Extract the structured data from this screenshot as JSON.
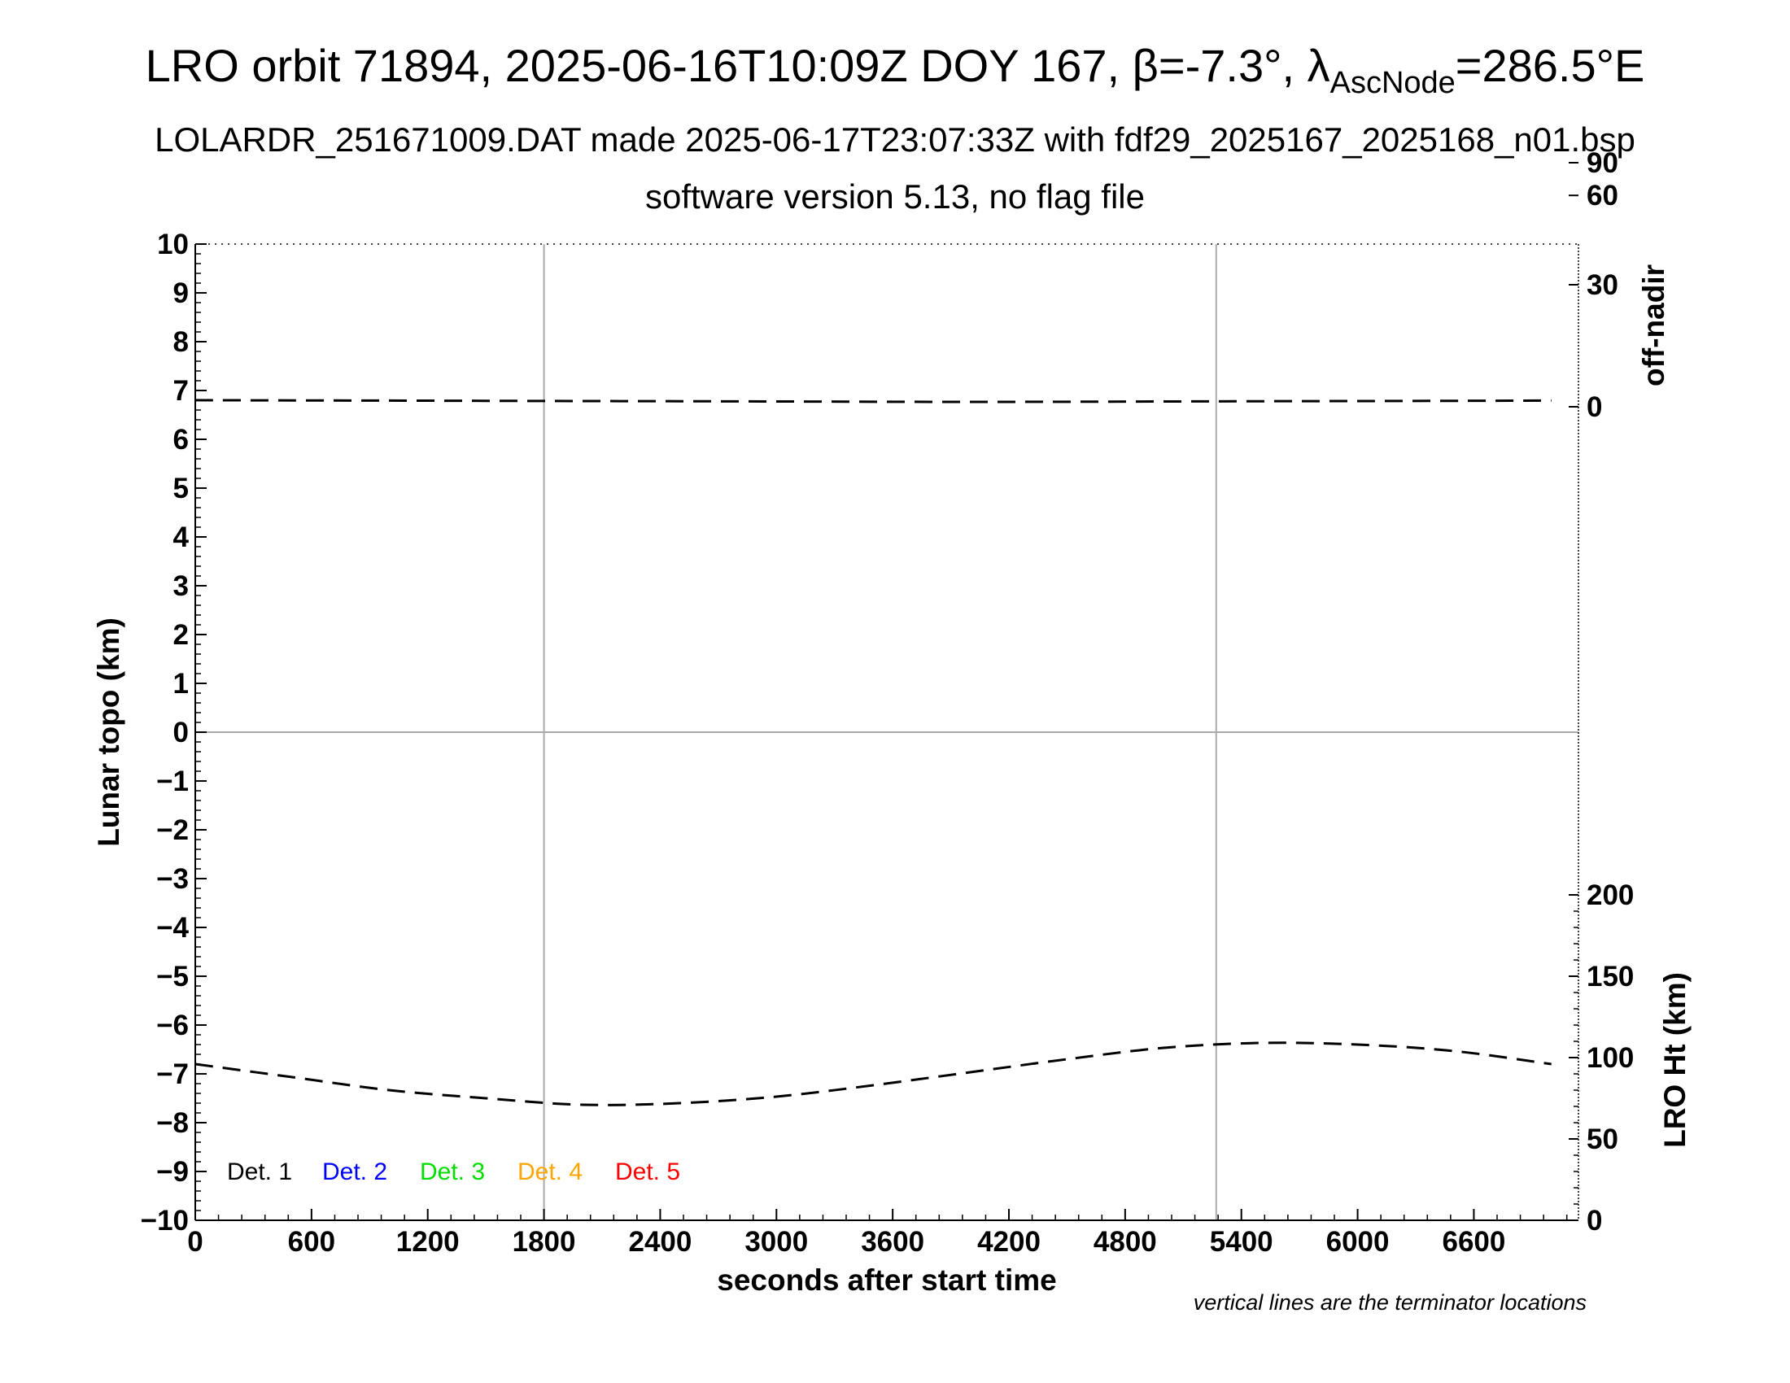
{
  "title": {
    "main_prefix": "LRO orbit 71894, 2025-06-16T10:09Z DOY 167, ",
    "beta": "β=-7.3°, ",
    "lambda": "λ",
    "lambda_sub": "AscNode",
    "lambda_value": "=286.5°E"
  },
  "subtitle1": "LOLARDR_251671009.DAT made 2025-06-17T23:07:33Z with fdf29_2025167_2025168_n01.bsp",
  "subtitle2": "software version 5.13, no flag file",
  "note": "vertical lines are the terminator locations",
  "colors": {
    "det1": "#000000",
    "det2": "#0000ff",
    "det3": "#00dd00",
    "det4": "#ffa500",
    "det5": "#ff0000",
    "grid": "#aaaaaa"
  },
  "chart_data": {
    "type": "line",
    "xlabel": "seconds after start time",
    "ylabel": "Lunar topo (km)",
    "right_top_label": "off-nadir",
    "right_bottom_label": "LRO Ht (km)",
    "xlim": [
      0,
      7140
    ],
    "ylim": [
      -10,
      10
    ],
    "x_ticks": [
      "0",
      "600",
      "1200",
      "1800",
      "2400",
      "3000",
      "3600",
      "4200",
      "4800",
      "5400",
      "6000",
      "6600"
    ],
    "x_tick_values": [
      0,
      600,
      1200,
      1800,
      2400,
      3000,
      3600,
      4200,
      4800,
      5400,
      6000,
      6600
    ],
    "y_ticks": [
      "10",
      "9",
      "8",
      "7",
      "6",
      "5",
      "4",
      "3",
      "2",
      "1",
      "0",
      "−1",
      "−2",
      "−3",
      "−4",
      "−5",
      "−6",
      "−7",
      "−8",
      "−9",
      "−10"
    ],
    "y_tick_values": [
      10,
      9,
      8,
      7,
      6,
      5,
      4,
      3,
      2,
      1,
      0,
      -1,
      -2,
      -3,
      -4,
      -5,
      -6,
      -7,
      -8,
      -9,
      -10
    ],
    "off_nadir_ticks": [
      "90",
      "60",
      "30",
      "0"
    ],
    "off_nadir_values": [
      90,
      60,
      30,
      0
    ],
    "lro_ht_ticks": [
      "200",
      "150",
      "100",
      "50",
      "0"
    ],
    "lro_ht_values": [
      200,
      150,
      100,
      50,
      0
    ],
    "terminator_x": [
      1800,
      5270
    ],
    "legend": [
      "Det. 1",
      "Det. 2",
      "Det. 3",
      "Det. 4",
      "Det. 5"
    ],
    "series": [
      {
        "name": "off-nadir",
        "axis": "off-nadir (deg)",
        "x": [
          0,
          1000,
          2000,
          3000,
          4000,
          5000,
          6000,
          7000
        ],
        "values": [
          0.4,
          0.3,
          0.2,
          0.1,
          0.0,
          0.1,
          0.2,
          0.3
        ]
      },
      {
        "name": "LRO Ht (km)",
        "axis": "LRO Ht (km)",
        "x": [
          0,
          500,
          1000,
          1500,
          2000,
          2500,
          3000,
          3500,
          4000,
          4500,
          5000,
          5500,
          6000,
          6500,
          7000
        ],
        "values": [
          96,
          88,
          80,
          75,
          71,
          72,
          76,
          83,
          91,
          99,
          106,
          109,
          108,
          104,
          96
        ]
      }
    ]
  }
}
